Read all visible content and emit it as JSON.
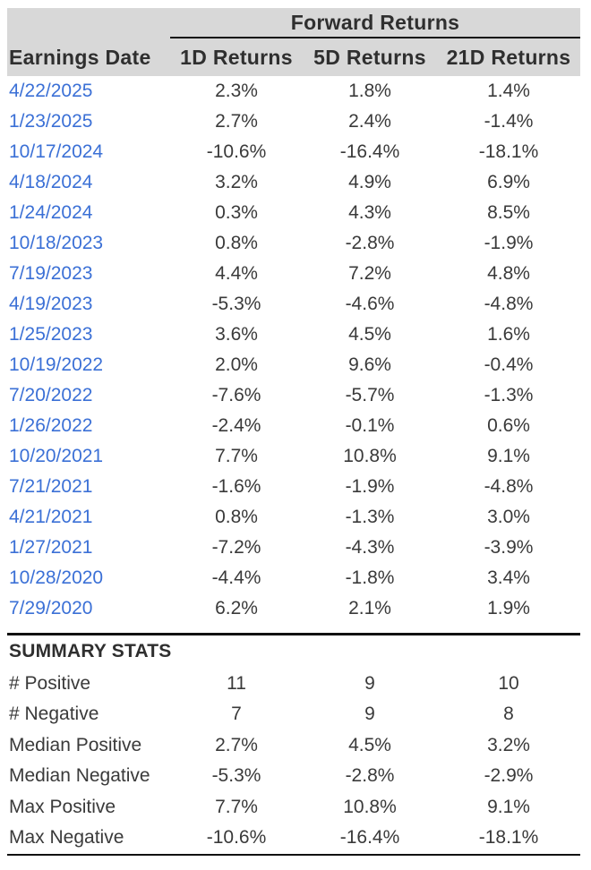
{
  "colors": {
    "page_background": "#ffffff",
    "header_band": "#d8d8d8",
    "rule": "#111111",
    "header_text": "#2f2f2f",
    "body_text": "#3a3a3a",
    "date_link": "#3b70d6"
  },
  "table": {
    "group_header": "Forward Returns",
    "columns": [
      "Earnings Date",
      "1D Returns",
      "5D Returns",
      "21D Returns"
    ],
    "rows": [
      {
        "date": "4/22/2025",
        "values": [
          "2.3%",
          "1.8%",
          "1.4%"
        ]
      },
      {
        "date": "1/23/2025",
        "values": [
          "2.7%",
          "2.4%",
          "-1.4%"
        ]
      },
      {
        "date": "10/17/2024",
        "values": [
          "-10.6%",
          "-16.4%",
          "-18.1%"
        ]
      },
      {
        "date": "4/18/2024",
        "values": [
          "3.2%",
          "4.9%",
          "6.9%"
        ]
      },
      {
        "date": "1/24/2024",
        "values": [
          "0.3%",
          "4.3%",
          "8.5%"
        ]
      },
      {
        "date": "10/18/2023",
        "values": [
          "0.8%",
          "-2.8%",
          "-1.9%"
        ]
      },
      {
        "date": "7/19/2023",
        "values": [
          "4.4%",
          "7.2%",
          "4.8%"
        ]
      },
      {
        "date": "4/19/2023",
        "values": [
          "-5.3%",
          "-4.6%",
          "-4.8%"
        ]
      },
      {
        "date": "1/25/2023",
        "values": [
          "3.6%",
          "4.5%",
          "1.6%"
        ]
      },
      {
        "date": "10/19/2022",
        "values": [
          "2.0%",
          "9.6%",
          "-0.4%"
        ]
      },
      {
        "date": "7/20/2022",
        "values": [
          "-7.6%",
          "-5.7%",
          "-1.3%"
        ]
      },
      {
        "date": "1/26/2022",
        "values": [
          "-2.4%",
          "-0.1%",
          "0.6%"
        ]
      },
      {
        "date": "10/20/2021",
        "values": [
          "7.7%",
          "10.8%",
          "9.1%"
        ]
      },
      {
        "date": "7/21/2021",
        "values": [
          "-1.6%",
          "-1.9%",
          "-4.8%"
        ]
      },
      {
        "date": "4/21/2021",
        "values": [
          "0.8%",
          "-1.3%",
          "3.0%"
        ]
      },
      {
        "date": "1/27/2021",
        "values": [
          "-7.2%",
          "-4.3%",
          "-3.9%"
        ]
      },
      {
        "date": "10/28/2020",
        "values": [
          "-4.4%",
          "-1.8%",
          "3.4%"
        ]
      },
      {
        "date": "7/29/2020",
        "values": [
          "6.2%",
          "2.1%",
          "1.9%"
        ]
      }
    ],
    "summary_title": "SUMMARY STATS",
    "summary_rows": [
      {
        "label": "# Positive",
        "values": [
          "11",
          "9",
          "10"
        ]
      },
      {
        "label": "# Negative",
        "values": [
          "7",
          "9",
          "8"
        ]
      },
      {
        "label": "Median Positive",
        "values": [
          "2.7%",
          "4.5%",
          "3.2%"
        ]
      },
      {
        "label": "Median Negative",
        "values": [
          "-5.3%",
          "-2.8%",
          "-2.9%"
        ]
      },
      {
        "label": "Max Positive",
        "values": [
          "7.7%",
          "10.8%",
          "9.1%"
        ]
      },
      {
        "label": "Max Negative",
        "values": [
          "-10.6%",
          "-16.4%",
          "-18.1%"
        ]
      }
    ]
  },
  "chart_data": {
    "type": "table",
    "title": "Forward Returns",
    "columns": [
      "Earnings Date",
      "1D Returns",
      "5D Returns",
      "21D Returns"
    ],
    "rows": [
      [
        "4/22/2025",
        2.3,
        1.8,
        1.4
      ],
      [
        "1/23/2025",
        2.7,
        2.4,
        -1.4
      ],
      [
        "10/17/2024",
        -10.6,
        -16.4,
        -18.1
      ],
      [
        "4/18/2024",
        3.2,
        4.9,
        6.9
      ],
      [
        "1/24/2024",
        0.3,
        4.3,
        8.5
      ],
      [
        "10/18/2023",
        0.8,
        -2.8,
        -1.9
      ],
      [
        "7/19/2023",
        4.4,
        7.2,
        4.8
      ],
      [
        "4/19/2023",
        -5.3,
        -4.6,
        -4.8
      ],
      [
        "1/25/2023",
        3.6,
        4.5,
        1.6
      ],
      [
        "10/19/2022",
        2.0,
        9.6,
        -0.4
      ],
      [
        "7/20/2022",
        -7.6,
        -5.7,
        -1.3
      ],
      [
        "1/26/2022",
        -2.4,
        -0.1,
        0.6
      ],
      [
        "10/20/2021",
        7.7,
        10.8,
        9.1
      ],
      [
        "7/21/2021",
        -1.6,
        -1.9,
        -4.8
      ],
      [
        "4/21/2021",
        0.8,
        -1.3,
        3.0
      ],
      [
        "1/27/2021",
        -7.2,
        -4.3,
        -3.9
      ],
      [
        "10/28/2020",
        -4.4,
        -1.8,
        3.4
      ],
      [
        "7/29/2020",
        6.2,
        2.1,
        1.9
      ]
    ],
    "summary": [
      [
        "# Positive",
        11,
        9,
        10
      ],
      [
        "# Negative",
        7,
        9,
        8
      ],
      [
        "Median Positive",
        2.7,
        4.5,
        3.2
      ],
      [
        "Median Negative",
        -5.3,
        -2.8,
        -2.9
      ],
      [
        "Max Positive",
        7.7,
        10.8,
        9.1
      ],
      [
        "Max Negative",
        -10.6,
        -16.4,
        -18.1
      ]
    ],
    "units": "percent (except # Positive / # Negative counts)"
  }
}
